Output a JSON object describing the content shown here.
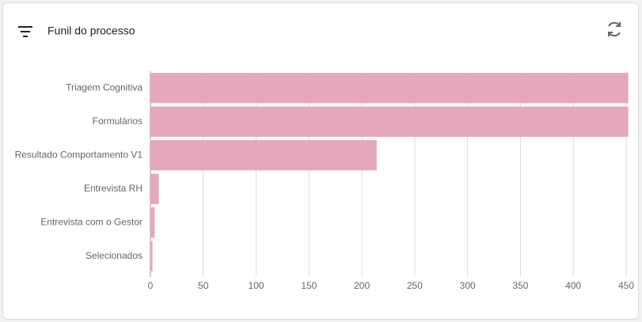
{
  "chart_data": {
    "type": "bar",
    "orientation": "horizontal",
    "title": "Funil do processo",
    "categories": [
      "Triagem Cognitiva",
      "Formulários",
      "Resultado Comportamento V1",
      "Entrevista RH",
      "Entrevista com o Gestor",
      "Selecionados"
    ],
    "values": [
      452,
      452,
      214,
      8,
      4,
      2
    ],
    "color": "#e6a7bc",
    "xlim": [
      0,
      450
    ],
    "xticks": [
      0,
      50,
      100,
      150,
      200,
      250,
      300,
      350,
      400,
      450
    ],
    "grid": true
  }
}
